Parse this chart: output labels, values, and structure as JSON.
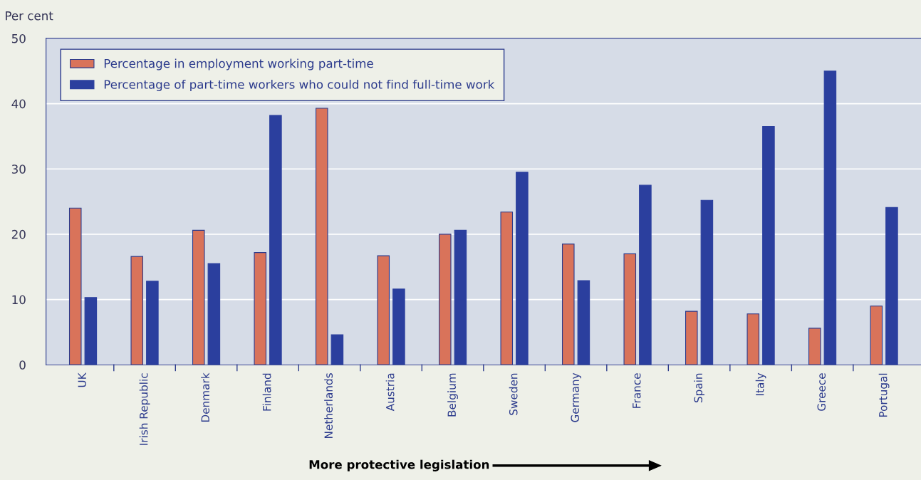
{
  "chart_data": {
    "type": "bar",
    "ylabel": "Per cent",
    "categories": [
      "UK",
      "Irish Republic",
      "Denmark",
      "Finland",
      "Netherlands",
      "Austria",
      "Belgium",
      "Sweden",
      "Germany",
      "France",
      "Spain",
      "Italy",
      "Greece",
      "Portugal"
    ],
    "series": [
      {
        "name": "Percentage in employment working part-time",
        "color": "#d9735a",
        "values": [
          24.0,
          16.6,
          20.6,
          17.2,
          39.3,
          16.7,
          20.0,
          23.4,
          18.5,
          17.0,
          8.2,
          7.8,
          5.6,
          9.0
        ]
      },
      {
        "name": "Percentage of part-time workers who could not find full-time work",
        "color": "#2b3f9e",
        "values": [
          10.3,
          12.8,
          15.5,
          38.2,
          4.6,
          11.6,
          20.6,
          29.5,
          12.9,
          27.5,
          25.2,
          36.5,
          45.0,
          24.1
        ]
      }
    ],
    "ylim": [
      0,
      50
    ],
    "yticks": [
      0,
      10,
      20,
      30,
      40,
      50
    ],
    "grid": "y",
    "legend": "top left",
    "annotations": [
      "More protective legislation"
    ]
  }
}
